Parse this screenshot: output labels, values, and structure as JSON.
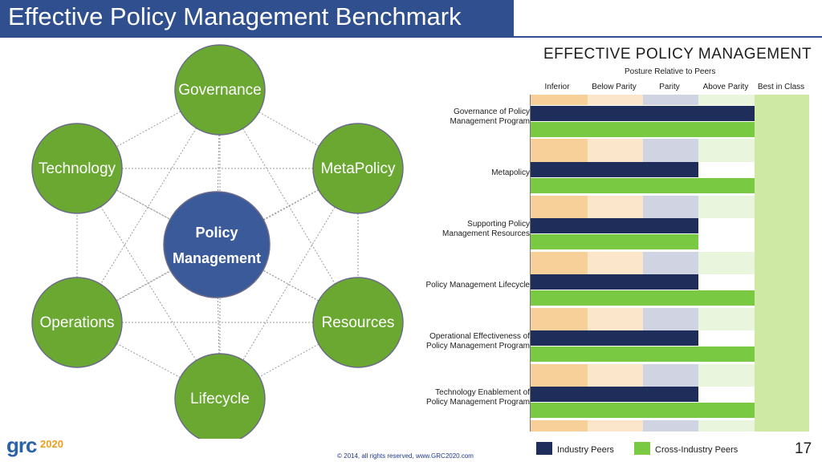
{
  "slide": {
    "title": "Effective Policy Management Benchmark",
    "page_number": "17",
    "copyright": "© 2014, all rights reserved, www.GRC2020.com",
    "logo_text": "grc",
    "logo_suffix": "2020"
  },
  "diagram": {
    "center": [
      "Policy",
      "Management"
    ],
    "nodes": [
      "Governance",
      "MetaPolicy",
      "Resources",
      "Lifecycle",
      "Operations",
      "Technology"
    ],
    "colors": {
      "node": "#6aa832",
      "center": "#3a5a9a",
      "outline": "#6b6b8a"
    }
  },
  "chart_data": {
    "type": "bar",
    "title": "EFFECTIVE POLICY MANAGEMENT",
    "xlabel": "Posture Relative to Peers",
    "levels": [
      "Inferior",
      "Below Parity",
      "Parity",
      "Above Parity",
      "Best in Class"
    ],
    "categories": [
      [
        "Governance of Policy",
        "Management Program"
      ],
      [
        "Metapolicy"
      ],
      [
        "Supporting Policy",
        "Management Resources"
      ],
      [
        "Policy Management Lifecycle"
      ],
      [
        "Operational Effectiveness of",
        "Policy Management Program"
      ],
      [
        "Technology Enablement of",
        "Policy Management Program"
      ]
    ],
    "series": [
      {
        "name": "Industry Peers",
        "color": "#1f2d5a",
        "values": [
          4.0,
          3.0,
          3.0,
          3.0,
          3.0,
          3.0
        ]
      },
      {
        "name": "Cross-Industry Peers",
        "color": "#7ac943",
        "values": [
          4.0,
          4.0,
          3.0,
          4.0,
          4.0,
          4.0
        ]
      }
    ],
    "band_colors": [
      "#f7cf98",
      "#fbe6cc",
      "#d0d4e2",
      "#eaf5dd",
      "#cde9a4"
    ],
    "legend": "bottom"
  }
}
